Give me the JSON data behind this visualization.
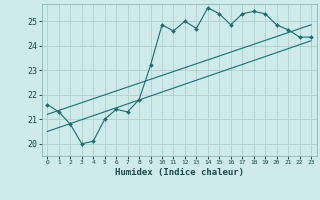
{
  "title": "",
  "xlabel": "Humidex (Indice chaleur)",
  "ylabel": "",
  "bg_color": "#ceeaea",
  "grid_color": "#b0d0d0",
  "line_color": "#1a6e6e",
  "xlim": [
    -0.5,
    23.5
  ],
  "ylim": [
    19.5,
    25.7
  ],
  "xticks": [
    0,
    1,
    2,
    3,
    4,
    5,
    6,
    7,
    8,
    9,
    10,
    11,
    12,
    13,
    14,
    15,
    16,
    17,
    18,
    19,
    20,
    21,
    22,
    23
  ],
  "yticks": [
    20,
    21,
    22,
    23,
    24,
    25
  ],
  "series1_x": [
    0,
    1,
    2,
    3,
    4,
    5,
    6,
    7,
    8,
    9,
    10,
    11,
    12,
    13,
    14,
    15,
    16,
    17,
    18,
    19,
    20,
    21,
    22,
    23
  ],
  "series1_y": [
    21.6,
    21.3,
    20.8,
    20.0,
    20.1,
    21.0,
    21.4,
    21.3,
    21.8,
    23.2,
    24.85,
    24.6,
    25.0,
    24.7,
    25.55,
    25.3,
    24.85,
    25.3,
    25.4,
    25.3,
    24.85,
    24.65,
    24.35,
    24.35
  ],
  "series2_x": [
    0,
    23
  ],
  "series2_y": [
    21.2,
    24.85
  ],
  "series3_x": [
    0,
    23
  ],
  "series3_y": [
    20.5,
    24.2
  ]
}
